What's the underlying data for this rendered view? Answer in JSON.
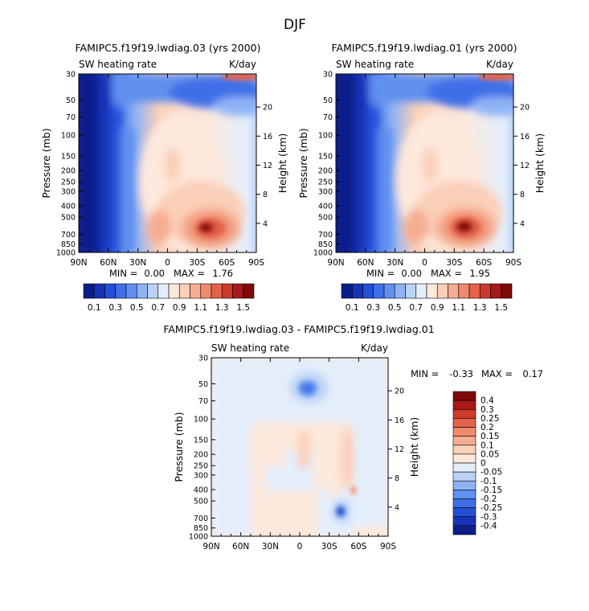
{
  "figure_title": "DJF",
  "chart_data": [
    {
      "type": "heatmap",
      "title": "FAMIPC5.f19f19.lwdiag.03 (yrs 2000)",
      "left_subtitle": "SW heating rate",
      "right_subtitle": "K/day",
      "ylabel": "Pressure (mb)",
      "ylabel_right": "Height (km)",
      "x_ticks": [
        "90N",
        "60N",
        "30N",
        "0",
        "30S",
        "60S",
        "90S"
      ],
      "y_ticks": [
        "30",
        "50",
        "70",
        "100",
        "150",
        "200",
        "250",
        "300",
        "400",
        "500",
        "700",
        "850",
        "1000"
      ],
      "y_ticks_right": [
        "20",
        "16",
        "12",
        "8",
        "4"
      ],
      "stats": {
        "min_label": "MIN =",
        "min": "0.00",
        "max_label": "MAX =",
        "max": "1.76"
      },
      "colorbar": {
        "orientation": "horizontal",
        "labels": [
          "0.1",
          "0.3",
          "0.5",
          "0.7",
          "0.9",
          "1.1",
          "1.3",
          "1.5"
        ],
        "colors": [
          "#0b1f8a",
          "#1733b8",
          "#2350d8",
          "#3f6ee8",
          "#6090f0",
          "#8fb2f5",
          "#bcd3f7",
          "#e4eefb",
          "#fde8dc",
          "#fbcfb8",
          "#f6ad92",
          "#ef8a6c",
          "#e4614a",
          "#cc3a2a",
          "#a81a18",
          "#7f0a0a"
        ]
      }
    },
    {
      "type": "heatmap",
      "title": "FAMIPC5.f19f19.lwdiag.01 (yrs 2000)",
      "left_subtitle": "SW heating rate",
      "right_subtitle": "K/day",
      "ylabel": "Pressure (mb)",
      "ylabel_right": "Height (km)",
      "x_ticks": [
        "90N",
        "60N",
        "30N",
        "0",
        "30S",
        "60S",
        "90S"
      ],
      "y_ticks": [
        "30",
        "50",
        "70",
        "100",
        "150",
        "200",
        "250",
        "300",
        "400",
        "500",
        "700",
        "850",
        "1000"
      ],
      "y_ticks_right": [
        "20",
        "16",
        "12",
        "8",
        "4"
      ],
      "stats": {
        "min_label": "MIN =",
        "min": "0.00",
        "max_label": "MAX =",
        "max": "1.95"
      },
      "colorbar": {
        "orientation": "horizontal",
        "labels": [
          "0.1",
          "0.3",
          "0.5",
          "0.7",
          "0.9",
          "1.1",
          "1.3",
          "1.5"
        ],
        "colors": [
          "#0b1f8a",
          "#1733b8",
          "#2350d8",
          "#3f6ee8",
          "#6090f0",
          "#8fb2f5",
          "#bcd3f7",
          "#e4eefb",
          "#fde8dc",
          "#fbcfb8",
          "#f6ad92",
          "#ef8a6c",
          "#e4614a",
          "#cc3a2a",
          "#a81a18",
          "#7f0a0a"
        ]
      }
    },
    {
      "type": "heatmap",
      "title": "FAMIPC5.f19f19.lwdiag.03 - FAMIPC5.f19f19.lwdiag.01",
      "left_subtitle": "SW heating rate",
      "right_subtitle": "K/day",
      "ylabel": "Pressure (mb)",
      "ylabel_right": "Height (km)",
      "x_ticks": [
        "90N",
        "60N",
        "30N",
        "0",
        "30S",
        "60S",
        "90S"
      ],
      "y_ticks": [
        "30",
        "50",
        "70",
        "100",
        "150",
        "200",
        "250",
        "300",
        "400",
        "500",
        "700",
        "850",
        "1000"
      ],
      "y_ticks_right": [
        "20",
        "16",
        "12",
        "8",
        "4"
      ],
      "stats": {
        "min_label": "MIN =",
        "min": "-0.33",
        "max_label": "MAX =",
        "max": "0.17"
      },
      "colorbar": {
        "orientation": "vertical",
        "labels": [
          "0.4",
          "0.3",
          "0.25",
          "0.2",
          "0.15",
          "0.1",
          "0.05",
          "0",
          "-0.05",
          "-0.1",
          "-0.15",
          "-0.2",
          "-0.25",
          "-0.3",
          "-0.4"
        ],
        "colors": [
          "#7f0a0a",
          "#a81a18",
          "#cc3a2a",
          "#e4614a",
          "#ef8a6c",
          "#f6ad92",
          "#fbcfb8",
          "#fde8dc",
          "#e4eefb",
          "#bcd3f7",
          "#8fb2f5",
          "#6090f0",
          "#3f6ee8",
          "#2350d8",
          "#1733b8",
          "#0b1f8a"
        ]
      }
    }
  ]
}
